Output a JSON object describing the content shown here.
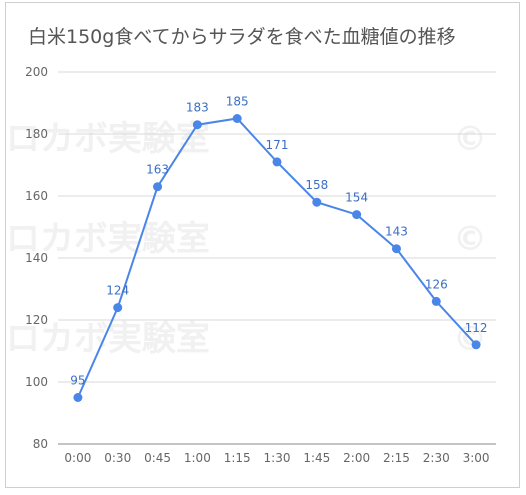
{
  "chart_data": {
    "type": "line",
    "title": "白米150g食べてからサラダを食べた血糖値の推移",
    "categories": [
      "0:00",
      "0:30",
      "0:45",
      "1:00",
      "1:15",
      "1:30",
      "1:45",
      "2:00",
      "2:15",
      "2:30",
      "3:00"
    ],
    "series": [
      {
        "values": [
          95,
          124,
          163,
          183,
          185,
          171,
          158,
          154,
          143,
          126,
          112
        ]
      }
    ],
    "ylim": [
      80,
      200
    ],
    "yticks": [
      80,
      100,
      120,
      140,
      160,
      180,
      200
    ],
    "grid": true,
    "watermark": "© ロカボ実験室",
    "colors": {
      "line": "#4a86e8",
      "label": "#3b6fc4",
      "grid": "#d9d9d9",
      "axis_text": "#666666"
    }
  }
}
